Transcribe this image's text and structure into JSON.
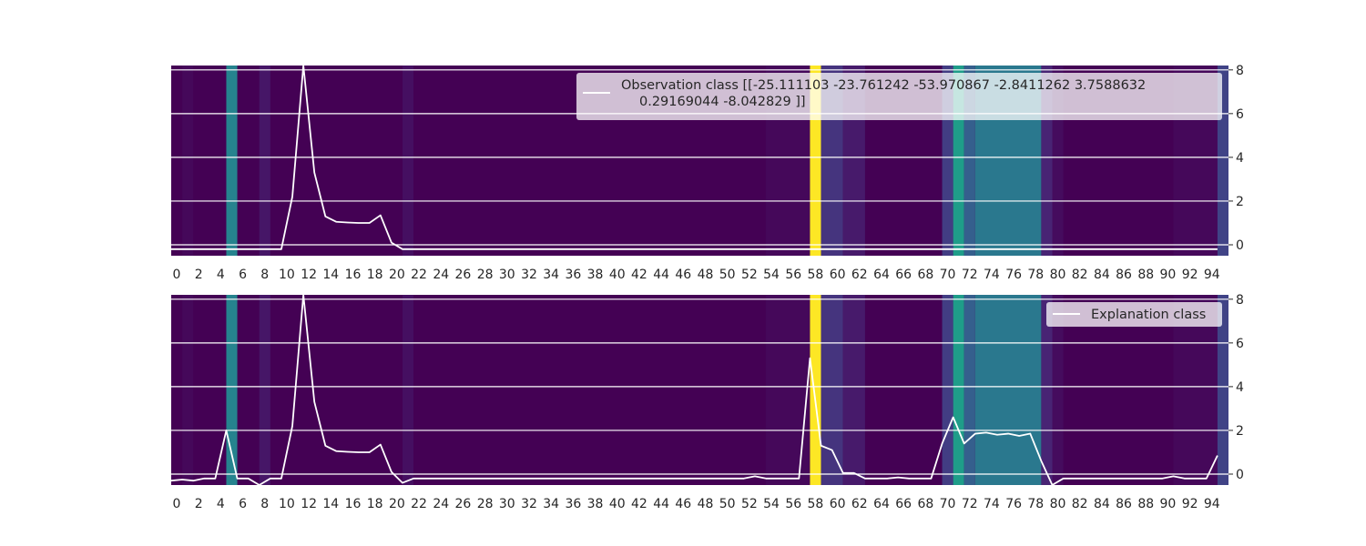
{
  "chart_data": [
    {
      "type": "line",
      "panel": "top",
      "legend": {
        "label_line1": "Observation class [[-25.111103    -23.761242    -53.970867     -2.8411262     3.7588632",
        "label_line2": "0.29169044   -8.042829  ]]",
        "placement": "upper-right"
      },
      "xlim": [
        0,
        96
      ],
      "ylim": [
        -0.5,
        8.2
      ],
      "x_ticks": [
        0,
        2,
        4,
        6,
        8,
        10,
        12,
        14,
        16,
        18,
        20,
        22,
        24,
        26,
        28,
        30,
        32,
        34,
        36,
        38,
        40,
        42,
        44,
        46,
        48,
        50,
        52,
        54,
        56,
        58,
        60,
        62,
        64,
        66,
        68,
        70,
        72,
        74,
        76,
        78,
        80,
        82,
        84,
        86,
        88,
        90,
        92,
        94
      ],
      "y_ticks": [
        0,
        2,
        4,
        6,
        8
      ],
      "grid": "horizontal",
      "series": [
        {
          "color": "#ffffff",
          "y": [
            -0.2,
            -0.2,
            -0.2,
            -0.2,
            -0.2,
            -0.2,
            -0.2,
            -0.2,
            -0.2,
            -0.2,
            -0.2,
            2.2,
            8.2,
            3.3,
            1.3,
            1.05,
            1.02,
            1.0,
            1.0,
            1.35,
            0.1,
            -0.2,
            -0.2,
            -0.2,
            -0.2,
            -0.2,
            -0.2,
            -0.2,
            -0.2,
            -0.2,
            -0.2,
            -0.2,
            -0.2,
            -0.2,
            -0.2,
            -0.2,
            -0.2,
            -0.2,
            -0.2,
            -0.2,
            -0.2,
            -0.2,
            -0.2,
            -0.2,
            -0.2,
            -0.2,
            -0.2,
            -0.2,
            -0.2,
            -0.2,
            -0.2,
            -0.2,
            -0.2,
            -0.2,
            -0.2,
            -0.2,
            -0.2,
            -0.2,
            -0.2,
            -0.2,
            -0.2,
            -0.2,
            -0.2,
            -0.2,
            -0.2,
            -0.2,
            -0.2,
            -0.2,
            -0.2,
            -0.2,
            -0.2,
            -0.2,
            -0.2,
            -0.2,
            -0.2,
            -0.2,
            -0.2,
            -0.2,
            -0.2,
            -0.2,
            -0.2,
            -0.2,
            -0.2,
            -0.2,
            -0.2,
            -0.2,
            -0.2,
            -0.2,
            -0.2,
            -0.2,
            -0.2,
            -0.2,
            -0.2,
            -0.2,
            -0.2,
            -0.2
          ]
        }
      ]
    },
    {
      "type": "line",
      "panel": "bottom",
      "legend": {
        "label": "Explanation class",
        "placement": "upper-right"
      },
      "xlim": [
        0,
        96
      ],
      "ylim": [
        -0.5,
        8.2
      ],
      "x_ticks": [
        0,
        2,
        4,
        6,
        8,
        10,
        12,
        14,
        16,
        18,
        20,
        22,
        24,
        26,
        28,
        30,
        32,
        34,
        36,
        38,
        40,
        42,
        44,
        46,
        48,
        50,
        52,
        54,
        56,
        58,
        60,
        62,
        64,
        66,
        68,
        70,
        72,
        74,
        76,
        78,
        80,
        82,
        84,
        86,
        88,
        90,
        92,
        94
      ],
      "y_ticks": [
        0,
        2,
        4,
        6,
        8
      ],
      "grid": "horizontal",
      "series": [
        {
          "color": "#ffffff",
          "y": [
            -0.3,
            -0.25,
            -0.3,
            -0.2,
            -0.2,
            2.0,
            -0.2,
            -0.2,
            -0.5,
            -0.2,
            -0.2,
            2.2,
            8.2,
            3.3,
            1.3,
            1.05,
            1.02,
            1.0,
            1.0,
            1.35,
            0.1,
            -0.4,
            -0.2,
            -0.2,
            -0.2,
            -0.2,
            -0.2,
            -0.2,
            -0.2,
            -0.2,
            -0.2,
            -0.2,
            -0.2,
            -0.2,
            -0.2,
            -0.2,
            -0.2,
            -0.2,
            -0.2,
            -0.2,
            -0.2,
            -0.2,
            -0.2,
            -0.2,
            -0.2,
            -0.2,
            -0.2,
            -0.2,
            -0.2,
            -0.2,
            -0.2,
            -0.2,
            -0.2,
            -0.1,
            -0.2,
            -0.2,
            -0.2,
            -0.2,
            5.3,
            1.3,
            1.1,
            0.05,
            0.05,
            -0.2,
            -0.2,
            -0.2,
            -0.15,
            -0.2,
            -0.2,
            -0.2,
            1.4,
            2.6,
            1.4,
            1.85,
            1.9,
            1.8,
            1.85,
            1.75,
            1.85,
            0.6,
            -0.5,
            -0.2,
            -0.2,
            -0.2,
            -0.2,
            -0.2,
            -0.2,
            -0.2,
            -0.2,
            -0.2,
            -0.2,
            -0.1,
            -0.2,
            -0.2,
            -0.2,
            0.85
          ]
        }
      ]
    }
  ],
  "heatmap": {
    "colormap": "viridis",
    "base_value": 0.0,
    "cells": [
      {
        "from": 0,
        "to": 1,
        "value": 0.0
      },
      {
        "from": 1,
        "to": 2,
        "value": 0.02
      },
      {
        "from": 2,
        "to": 5,
        "value": 0.0
      },
      {
        "from": 5,
        "to": 6,
        "value": 0.45
      },
      {
        "from": 6,
        "to": 8,
        "value": 0.0
      },
      {
        "from": 8,
        "to": 9,
        "value": 0.06
      },
      {
        "from": 9,
        "to": 21,
        "value": 0.0
      },
      {
        "from": 21,
        "to": 22,
        "value": 0.04
      },
      {
        "from": 22,
        "to": 54,
        "value": 0.0
      },
      {
        "from": 54,
        "to": 58,
        "value": 0.02
      },
      {
        "from": 58,
        "to": 59,
        "value": 1.0
      },
      {
        "from": 59,
        "to": 61,
        "value": 0.15
      },
      {
        "from": 61,
        "to": 63,
        "value": 0.07
      },
      {
        "from": 63,
        "to": 70,
        "value": 0.0
      },
      {
        "from": 70,
        "to": 71,
        "value": 0.18
      },
      {
        "from": 71,
        "to": 72,
        "value": 0.55
      },
      {
        "from": 72,
        "to": 73,
        "value": 0.3
      },
      {
        "from": 73,
        "to": 79,
        "value": 0.4
      },
      {
        "from": 79,
        "to": 80,
        "value": 0.1
      },
      {
        "from": 80,
        "to": 81,
        "value": 0.03
      },
      {
        "from": 81,
        "to": 91,
        "value": 0.0
      },
      {
        "from": 91,
        "to": 95,
        "value": 0.02
      },
      {
        "from": 95,
        "to": 96,
        "value": 0.2
      }
    ]
  }
}
